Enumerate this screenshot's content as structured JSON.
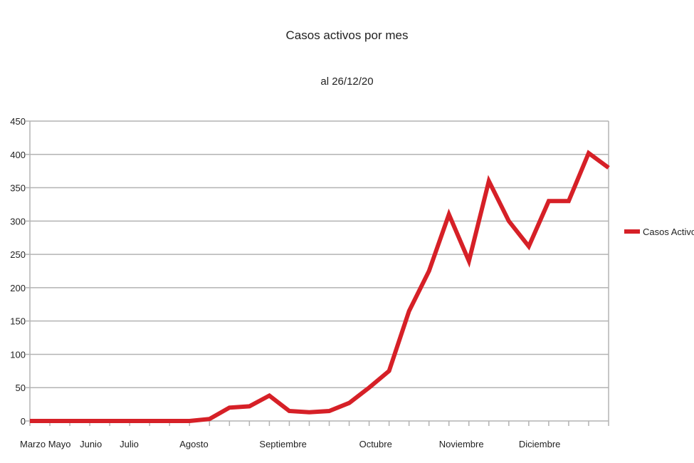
{
  "chart_data": {
    "type": "line",
    "title": "Casos activos por mes",
    "subtitle": "al 26/12/20",
    "xlabel": "",
    "ylabel": "",
    "ylim": [
      0,
      450
    ],
    "yticks": [
      "0",
      "50",
      "100",
      "150",
      "200",
      "250",
      "300",
      "350",
      "400",
      "450"
    ],
    "x_labels": [
      {
        "label": "Marzo Mayo",
        "index": 0
      },
      {
        "label": "Junio",
        "index": 3
      },
      {
        "label": "Julio",
        "index": 5
      },
      {
        "label": "Agosto",
        "index": 8
      },
      {
        "label": "Septiembre",
        "index": 12
      },
      {
        "label": "Octubre",
        "index": 17
      },
      {
        "label": "Noviembre",
        "index": 21
      },
      {
        "label": "Diciembre",
        "index": 25
      }
    ],
    "grid": true,
    "legend_position": "right",
    "series": [
      {
        "name": "Casos Activos",
        "color": "#d62027",
        "values": [
          0,
          0,
          0,
          0,
          0,
          0,
          0,
          0,
          0,
          3,
          20,
          22,
          38,
          15,
          13,
          15,
          27,
          50,
          75,
          165,
          225,
          310,
          240,
          360,
          300,
          262,
          330,
          330,
          402,
          380
        ]
      }
    ]
  }
}
